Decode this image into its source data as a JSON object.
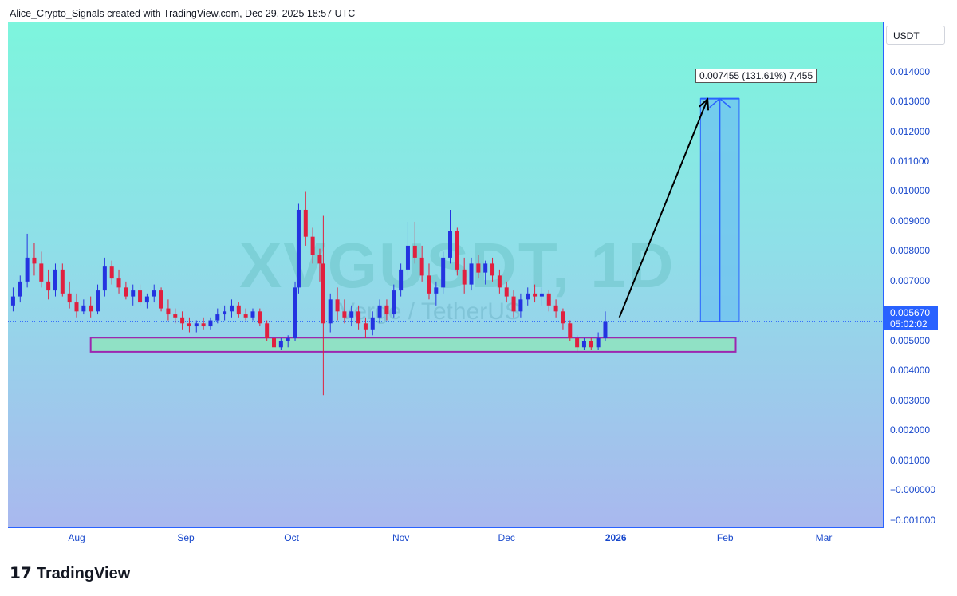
{
  "header": {
    "attribution": "Alice_Crypto_Signals created with TradingView.com, Dec 29, 2025 18:57 UTC"
  },
  "brand": {
    "logo_text": "𝟭𝟳",
    "name": "TradingView"
  },
  "watermark": {
    "symbol": "XVGUSDT, 1D",
    "description": "Verge / TetherUS"
  },
  "colors": {
    "up_candle": "#2433e0",
    "down_candle": "#e0203f",
    "axis": "#2962ff",
    "support_zone_fill": "#8ee6b8",
    "support_zone_border": "#9c27b0",
    "target_box_fill": "#6ec1f0",
    "target_line": "#2962ff"
  },
  "annotations": {
    "measure_label": "0.007455 (131.61%) 7,455",
    "price_tag_value": "0.005670",
    "price_tag_countdown": "05:02:02"
  },
  "chart_data": {
    "type": "candlestick",
    "title": "XVGUSDT, 1D",
    "y_unit": "USDT",
    "y_ticks": [
      "0.014000",
      "0.013000",
      "0.012000",
      "0.011000",
      "0.010000",
      "0.009000",
      "0.008000",
      "0.007000",
      "0.006000",
      "0.005000",
      "0.004000",
      "0.003000",
      "0.002000",
      "0.001000",
      "−0.000000",
      "−0.001000"
    ],
    "x_ticks": [
      "Aug",
      "Sep",
      "Oct",
      "Nov",
      "Dec",
      "2026",
      "Feb",
      "Mar"
    ],
    "ylim": [
      -0.0012,
      0.0157
    ],
    "last_price": 0.00567,
    "support_zone": {
      "from": "2025-08-05",
      "to": "2026-02-04",
      "low": 0.00465,
      "high": 0.00512
    },
    "target_projection": {
      "from": "2026-01-25",
      "to": "2026-02-05",
      "base": 0.00567,
      "top": 0.01312,
      "change": "0.007455",
      "change_pct": "131.61%",
      "ticks": "7,455"
    },
    "projection_arrow": {
      "from_date": "2026-01-02",
      "from_price": 0.0058,
      "to_date": "2026-01-27",
      "to_price": 0.0131
    },
    "candles": [
      {
        "d": "2025-07-14",
        "o": 0.0062,
        "h": 0.0068,
        "l": 0.006,
        "c": 0.0065
      },
      {
        "d": "2025-07-16",
        "o": 0.0065,
        "h": 0.0072,
        "l": 0.0063,
        "c": 0.007
      },
      {
        "d": "2025-07-18",
        "o": 0.007,
        "h": 0.0086,
        "l": 0.0068,
        "c": 0.0078
      },
      {
        "d": "2025-07-20",
        "o": 0.0078,
        "h": 0.0083,
        "l": 0.0072,
        "c": 0.0076
      },
      {
        "d": "2025-07-22",
        "o": 0.0076,
        "h": 0.008,
        "l": 0.0068,
        "c": 0.007
      },
      {
        "d": "2025-07-24",
        "o": 0.007,
        "h": 0.0074,
        "l": 0.0064,
        "c": 0.0067
      },
      {
        "d": "2025-07-26",
        "o": 0.0067,
        "h": 0.0076,
        "l": 0.0065,
        "c": 0.0074
      },
      {
        "d": "2025-07-28",
        "o": 0.0074,
        "h": 0.0076,
        "l": 0.0065,
        "c": 0.0066
      },
      {
        "d": "2025-07-30",
        "o": 0.0066,
        "h": 0.007,
        "l": 0.0061,
        "c": 0.0063
      },
      {
        "d": "2025-08-01",
        "o": 0.0063,
        "h": 0.0066,
        "l": 0.0058,
        "c": 0.006
      },
      {
        "d": "2025-08-03",
        "o": 0.006,
        "h": 0.0064,
        "l": 0.0059,
        "c": 0.0062
      },
      {
        "d": "2025-08-05",
        "o": 0.0062,
        "h": 0.0065,
        "l": 0.0058,
        "c": 0.006
      },
      {
        "d": "2025-08-07",
        "o": 0.006,
        "h": 0.0069,
        "l": 0.0059,
        "c": 0.0067
      },
      {
        "d": "2025-08-09",
        "o": 0.0067,
        "h": 0.0078,
        "l": 0.0065,
        "c": 0.0075
      },
      {
        "d": "2025-08-11",
        "o": 0.0075,
        "h": 0.0077,
        "l": 0.0069,
        "c": 0.0071
      },
      {
        "d": "2025-08-13",
        "o": 0.0071,
        "h": 0.0074,
        "l": 0.0066,
        "c": 0.0068
      },
      {
        "d": "2025-08-15",
        "o": 0.0068,
        "h": 0.007,
        "l": 0.0064,
        "c": 0.0065
      },
      {
        "d": "2025-08-17",
        "o": 0.0065,
        "h": 0.0069,
        "l": 0.0062,
        "c": 0.0067
      },
      {
        "d": "2025-08-19",
        "o": 0.0067,
        "h": 0.0069,
        "l": 0.0062,
        "c": 0.0063
      },
      {
        "d": "2025-08-21",
        "o": 0.0063,
        "h": 0.0066,
        "l": 0.0061,
        "c": 0.0065
      },
      {
        "d": "2025-08-23",
        "o": 0.0065,
        "h": 0.0069,
        "l": 0.0063,
        "c": 0.0067
      },
      {
        "d": "2025-08-25",
        "o": 0.0067,
        "h": 0.0068,
        "l": 0.006,
        "c": 0.0061
      },
      {
        "d": "2025-08-27",
        "o": 0.0061,
        "h": 0.0064,
        "l": 0.0057,
        "c": 0.0059
      },
      {
        "d": "2025-08-29",
        "o": 0.0059,
        "h": 0.0061,
        "l": 0.0056,
        "c": 0.0058
      },
      {
        "d": "2025-08-31",
        "o": 0.0058,
        "h": 0.006,
        "l": 0.0054,
        "c": 0.0056
      },
      {
        "d": "2025-09-02",
        "o": 0.0056,
        "h": 0.0058,
        "l": 0.0053,
        "c": 0.0055
      },
      {
        "d": "2025-09-04",
        "o": 0.0055,
        "h": 0.0057,
        "l": 0.0053,
        "c": 0.0056
      },
      {
        "d": "2025-09-06",
        "o": 0.0056,
        "h": 0.0058,
        "l": 0.0054,
        "c": 0.0055
      },
      {
        "d": "2025-09-08",
        "o": 0.0055,
        "h": 0.0058,
        "l": 0.0054,
        "c": 0.0057
      },
      {
        "d": "2025-09-10",
        "o": 0.0057,
        "h": 0.0061,
        "l": 0.0056,
        "c": 0.0059
      },
      {
        "d": "2025-09-12",
        "o": 0.0059,
        "h": 0.0062,
        "l": 0.0057,
        "c": 0.006
      },
      {
        "d": "2025-09-14",
        "o": 0.006,
        "h": 0.0064,
        "l": 0.0058,
        "c": 0.0062
      },
      {
        "d": "2025-09-16",
        "o": 0.0062,
        "h": 0.0063,
        "l": 0.0058,
        "c": 0.0059
      },
      {
        "d": "2025-09-18",
        "o": 0.0059,
        "h": 0.0061,
        "l": 0.0057,
        "c": 0.0058
      },
      {
        "d": "2025-09-20",
        "o": 0.0058,
        "h": 0.0061,
        "l": 0.0057,
        "c": 0.006
      },
      {
        "d": "2025-09-22",
        "o": 0.006,
        "h": 0.0061,
        "l": 0.0055,
        "c": 0.0056
      },
      {
        "d": "2025-09-24",
        "o": 0.0056,
        "h": 0.0057,
        "l": 0.005,
        "c": 0.0051
      },
      {
        "d": "2025-09-26",
        "o": 0.0051,
        "h": 0.0052,
        "l": 0.00465,
        "c": 0.0048
      },
      {
        "d": "2025-09-28",
        "o": 0.0048,
        "h": 0.0051,
        "l": 0.0047,
        "c": 0.005
      },
      {
        "d": "2025-09-30",
        "o": 0.005,
        "h": 0.0052,
        "l": 0.0048,
        "c": 0.0051
      },
      {
        "d": "2025-10-02",
        "o": 0.0051,
        "h": 0.007,
        "l": 0.005,
        "c": 0.0068
      },
      {
        "d": "2025-10-03",
        "o": 0.0068,
        "h": 0.0096,
        "l": 0.0066,
        "c": 0.0094
      },
      {
        "d": "2025-10-05",
        "o": 0.0094,
        "h": 0.01,
        "l": 0.0082,
        "c": 0.0085
      },
      {
        "d": "2025-10-07",
        "o": 0.0085,
        "h": 0.0088,
        "l": 0.0076,
        "c": 0.0079
      },
      {
        "d": "2025-10-09",
        "o": 0.0079,
        "h": 0.0081,
        "l": 0.007,
        "c": 0.0076
      },
      {
        "d": "2025-10-10",
        "o": 0.0076,
        "h": 0.0092,
        "l": 0.0032,
        "c": 0.0056
      },
      {
        "d": "2025-10-12",
        "o": 0.0056,
        "h": 0.0066,
        "l": 0.0053,
        "c": 0.0064
      },
      {
        "d": "2025-10-14",
        "o": 0.0064,
        "h": 0.0068,
        "l": 0.0057,
        "c": 0.006
      },
      {
        "d": "2025-10-16",
        "o": 0.006,
        "h": 0.0064,
        "l": 0.0056,
        "c": 0.0058
      },
      {
        "d": "2025-10-18",
        "o": 0.0058,
        "h": 0.0062,
        "l": 0.0055,
        "c": 0.006
      },
      {
        "d": "2025-10-20",
        "o": 0.006,
        "h": 0.0062,
        "l": 0.0054,
        "c": 0.0056
      },
      {
        "d": "2025-10-22",
        "o": 0.0056,
        "h": 0.0058,
        "l": 0.0051,
        "c": 0.0054
      },
      {
        "d": "2025-10-24",
        "o": 0.0054,
        "h": 0.006,
        "l": 0.0052,
        "c": 0.0058
      },
      {
        "d": "2025-10-26",
        "o": 0.0058,
        "h": 0.0064,
        "l": 0.0056,
        "c": 0.0062
      },
      {
        "d": "2025-10-28",
        "o": 0.0062,
        "h": 0.0064,
        "l": 0.0057,
        "c": 0.0059
      },
      {
        "d": "2025-10-30",
        "o": 0.0059,
        "h": 0.0069,
        "l": 0.0058,
        "c": 0.0067
      },
      {
        "d": "2025-11-01",
        "o": 0.0067,
        "h": 0.0076,
        "l": 0.0065,
        "c": 0.0074
      },
      {
        "d": "2025-11-03",
        "o": 0.0074,
        "h": 0.009,
        "l": 0.0072,
        "c": 0.0082
      },
      {
        "d": "2025-11-05",
        "o": 0.0082,
        "h": 0.009,
        "l": 0.0076,
        "c": 0.0078
      },
      {
        "d": "2025-11-07",
        "o": 0.0078,
        "h": 0.0082,
        "l": 0.007,
        "c": 0.0072
      },
      {
        "d": "2025-11-09",
        "o": 0.0072,
        "h": 0.0076,
        "l": 0.0064,
        "c": 0.0066
      },
      {
        "d": "2025-11-11",
        "o": 0.0066,
        "h": 0.007,
        "l": 0.0062,
        "c": 0.0068
      },
      {
        "d": "2025-11-13",
        "o": 0.0068,
        "h": 0.008,
        "l": 0.0066,
        "c": 0.0078
      },
      {
        "d": "2025-11-15",
        "o": 0.0078,
        "h": 0.0094,
        "l": 0.0076,
        "c": 0.0087
      },
      {
        "d": "2025-11-17",
        "o": 0.0087,
        "h": 0.0088,
        "l": 0.0072,
        "c": 0.0074
      },
      {
        "d": "2025-11-19",
        "o": 0.0074,
        "h": 0.0078,
        "l": 0.0066,
        "c": 0.0069
      },
      {
        "d": "2025-11-21",
        "o": 0.0069,
        "h": 0.0078,
        "l": 0.0067,
        "c": 0.0076
      },
      {
        "d": "2025-11-23",
        "o": 0.0076,
        "h": 0.0079,
        "l": 0.0071,
        "c": 0.0073
      },
      {
        "d": "2025-11-25",
        "o": 0.0073,
        "h": 0.0077,
        "l": 0.0069,
        "c": 0.0076
      },
      {
        "d": "2025-11-27",
        "o": 0.0076,
        "h": 0.0078,
        "l": 0.007,
        "c": 0.0072
      },
      {
        "d": "2025-11-29",
        "o": 0.0072,
        "h": 0.0074,
        "l": 0.0066,
        "c": 0.0068
      },
      {
        "d": "2025-12-01",
        "o": 0.0068,
        "h": 0.007,
        "l": 0.0063,
        "c": 0.0065
      },
      {
        "d": "2025-12-03",
        "o": 0.0065,
        "h": 0.0067,
        "l": 0.0058,
        "c": 0.006
      },
      {
        "d": "2025-12-05",
        "o": 0.006,
        "h": 0.0066,
        "l": 0.0058,
        "c": 0.0064
      },
      {
        "d": "2025-12-07",
        "o": 0.0064,
        "h": 0.0068,
        "l": 0.0062,
        "c": 0.0066
      },
      {
        "d": "2025-12-09",
        "o": 0.0066,
        "h": 0.0069,
        "l": 0.0063,
        "c": 0.0065
      },
      {
        "d": "2025-12-11",
        "o": 0.0065,
        "h": 0.0068,
        "l": 0.0062,
        "c": 0.0066
      },
      {
        "d": "2025-12-13",
        "o": 0.0066,
        "h": 0.0067,
        "l": 0.006,
        "c": 0.0062
      },
      {
        "d": "2025-12-15",
        "o": 0.0062,
        "h": 0.0064,
        "l": 0.0058,
        "c": 0.006
      },
      {
        "d": "2025-12-17",
        "o": 0.006,
        "h": 0.0061,
        "l": 0.0054,
        "c": 0.0056
      },
      {
        "d": "2025-12-19",
        "o": 0.0056,
        "h": 0.0057,
        "l": 0.005,
        "c": 0.0051
      },
      {
        "d": "2025-12-21",
        "o": 0.0051,
        "h": 0.0052,
        "l": 0.00465,
        "c": 0.0048
      },
      {
        "d": "2025-12-23",
        "o": 0.0048,
        "h": 0.0051,
        "l": 0.0047,
        "c": 0.005
      },
      {
        "d": "2025-12-25",
        "o": 0.005,
        "h": 0.0051,
        "l": 0.0047,
        "c": 0.0048
      },
      {
        "d": "2025-12-27",
        "o": 0.0048,
        "h": 0.0053,
        "l": 0.0047,
        "c": 0.0051
      },
      {
        "d": "2025-12-29",
        "o": 0.0051,
        "h": 0.006,
        "l": 0.005,
        "c": 0.00567
      }
    ]
  }
}
